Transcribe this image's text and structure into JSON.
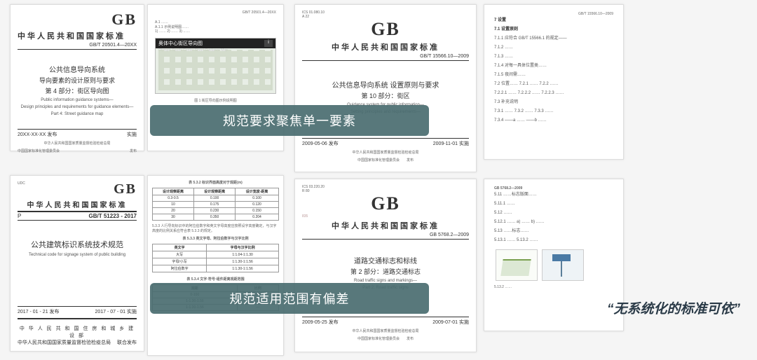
{
  "docs": {
    "top_left": {
      "gb": "GB",
      "header": "中华人民共和国国家标准",
      "code": "GB/T 20501.4—20XX",
      "title1": "公共信息导向系统",
      "title2": "导向要素的设计原则与要求",
      "title3": "第 4 部分：街区导向图",
      "en1": "Public information guidance systems—",
      "en2": "Design principles and requirements for guidance elements—",
      "en3": "Part 4: Street guidance map",
      "date_l": "20XX-XX-XX 发布",
      "date_r": "实施",
      "pub1": "中华人民共和国国家质量监督检验检疫总局",
      "pub2": "中国国家标准化管理委员会",
      "pub_s": "发布"
    },
    "top_map": {
      "small_code": "GB/T 20501.4—20XX",
      "bar": "奥体中心街区导向图",
      "bar_sub": "Olympic Sports Center Street Guidance Map",
      "caption": "图 1  街区导向图示例说明图"
    },
    "top_mid": {
      "gb": "GB",
      "header": "中华人民共和国国家标准",
      "code": "GB/T 15566.10—2009",
      "title1": "公共信息导向系统  设置原则与要求",
      "title2": "第 10 部分：街区",
      "en1": "Guidance system for public information—",
      "en2": "Setting principles and requirements—",
      "date_l": "2009-05-06 发布",
      "date_r": "2009-11-01 实施",
      "pub1": "中华人民共和国国家质量监督检验检疫总局",
      "pub2": "中国国家标准化管理委员会",
      "pub_s": "发布"
    },
    "top_right": {
      "h1": "7  设置",
      "h2": "7.1  设置原则",
      "lines": [
        "7.1.1  应符合 GB/T 15566.1 的规定——",
        "7.1.2  ……",
        "7.1.3  ……",
        "7.1.4  对每一具体位置类……",
        "7.1.5  夜间需……",
        "7.2  位置…… 7.2.1 …… 7.2.2 ……",
        "7.2.2.1  …… 7.2.2.2 …… 7.2.2.3 ……",
        "7.3  补充说明",
        "7.3.1  …… 7.3.2 …… 7.3.3 ……",
        "7.3.4  ——a ……  ——b ……"
      ],
      "code": "GB/T 15566.10—2009"
    },
    "bot_left": {
      "udc": "UDC",
      "gb": "GB",
      "header": "中华人民共和国国家标准",
      "p": "P",
      "code": "GB/T 51223 - 2017",
      "title": "公共建筑标识系统技术规范",
      "en": "Technical code for signage system of public building",
      "date_l": "2017 - 01 - 21 发布",
      "date_r": "2017 - 07 - 01 实施",
      "pub1": "中 华 人 民 共 和 国 住 房 和 城 乡 建 设 部",
      "pub2": "中华人民共和国国家质量监督检验检疫总局",
      "pub_s": "联合发布"
    },
    "bot_table": {
      "t1_title": "表 5.3.2  标识界面高度对于观距(m)",
      "t1_head": [
        "设计观察距离",
        "设计观察距离",
        "设计宽度-距离"
      ],
      "t1_rows": [
        [
          "0.3-0.5",
          "0.100",
          "0.100"
        ],
        [
          "10",
          "0.175",
          "0.120"
        ],
        [
          "20",
          "0.230",
          "0.150"
        ],
        [
          "30",
          "0.350",
          "0.204"
        ]
      ],
      "para": "5.3.3  人行导向标识中的阿拉伯数字和英文字母高度应按照设字高度确定，与汉字高度的比例关系应符合表 5.3.3 的规定。",
      "t2_title": "表 5.3.3  英文字母、阿拉伯数字与汉字比例",
      "t2_head": [
        "英文字",
        "字母与汉字比例"
      ],
      "t2_rows": [
        [
          "大写",
          "1:1.04-1:1.30"
        ],
        [
          "字母/小写",
          "1:1.30-1:1.56"
        ],
        [
          "阿拉伯数字",
          "1:1.30-1:1.56"
        ]
      ],
      "t3_title": "表 5.3.4  文字·符号·组件距离观距范围",
      "t3_head": [
        "观距",
        "比例"
      ],
      "t3_rows": [
        [
          "0-100",
          "0.78"
        ],
        [
          "1-1.30-1.56",
          "1.56"
        ],
        [
          "1-1.30-1.56",
          "—"
        ]
      ]
    },
    "bot_mid": {
      "gb": "GB",
      "header": "中华人民共和国国家标准",
      "small": "835",
      "code": "GB 5768.2—2009",
      "title1": "道路交通标志和标线",
      "title2": "第 2 部分：道路交通标志",
      "en1": "Road traffic signs and markings—",
      "en2": "Part 2: Road traffic signs",
      "date_l": "2009-05-25 发布",
      "date_r": "2009-07-01 实施",
      "pub1": "中华人民共和国国家质量监督检验检疫总局",
      "pub2": "中国国家标准化管理委员会",
      "pub_s": "发布"
    },
    "bot_right": {
      "code": "GB 5768.2—2009",
      "lines": [
        "5.11  ……标志版面……",
        "5.11.1  ……",
        "5.12  ……",
        "5.12.1  ……  a) ……  b) ……",
        "5.13  ……标志……",
        "5.13.1  ……  5.13.2  ……"
      ]
    }
  },
  "overlays": {
    "o1": "规范要求聚焦单一要素",
    "o2": "规范适用范围有偏差"
  },
  "callout": "“无系统化的标准可依”",
  "colors": {
    "overlay_bg": "#4a6d70",
    "callout_color": "#2a3a47"
  }
}
